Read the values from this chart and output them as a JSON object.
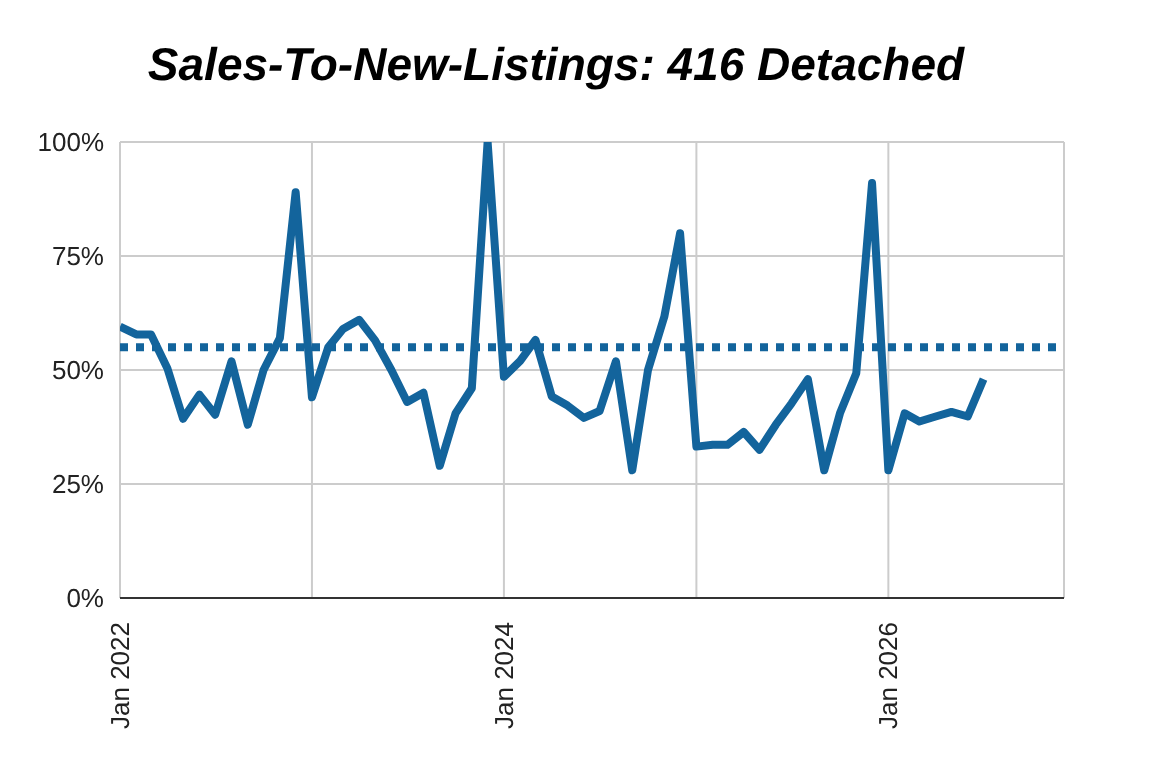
{
  "chart_data": {
    "type": "line",
    "title": "Sales-To-New-Listings: 416 Detached",
    "x": [
      "2022-01",
      "2022-02",
      "2022-03",
      "2022-04",
      "2022-05",
      "2022-06",
      "2022-07",
      "2022-08",
      "2022-09",
      "2022-10",
      "2022-11",
      "2022-12",
      "2023-01",
      "2023-02",
      "2023-03",
      "2023-04",
      "2023-05",
      "2023-06",
      "2023-07",
      "2023-08",
      "2023-09",
      "2023-10",
      "2023-11",
      "2023-12",
      "2024-01",
      "2024-02",
      "2024-03",
      "2024-04",
      "2024-05",
      "2024-06",
      "2024-07",
      "2024-08",
      "2024-09",
      "2024-10",
      "2024-11",
      "2024-12",
      "2025-01",
      "2025-02",
      "2025-03",
      "2025-04",
      "2025-05",
      "2025-06",
      "2025-07",
      "2025-08",
      "2025-09",
      "2025-10",
      "2025-11",
      "2025-12",
      "2026-01",
      "2026-02",
      "2026-03",
      "2026-04",
      "2026-05",
      "2026-06",
      "2026-07"
    ],
    "series": [
      {
        "color": "#13649c",
        "values": [
          59.5,
          57.8,
          57.8,
          50.4,
          39.3,
          44.6,
          40.2,
          51.9,
          38,
          50,
          57,
          89,
          44,
          55,
          59,
          61,
          56.5,
          50,
          43,
          45,
          29,
          40.5,
          46,
          100,
          48.5,
          52,
          56.6,
          44.2,
          42.2,
          39.5,
          41,
          51.9,
          28,
          50,
          61.7,
          80,
          33.2,
          33.6,
          33.6,
          36.4,
          32.5,
          38,
          42.7,
          48,
          28,
          40.5,
          49.3,
          91,
          28,
          40.5,
          38.7,
          39.8,
          40.8,
          39.8,
          48
        ]
      }
    ],
    "xlim": [
      "2022-01",
      "2026-12"
    ],
    "xticks": [
      {
        "value": "2022-01",
        "label": "Jan 2022"
      },
      {
        "value": "2023-01",
        "label": null
      },
      {
        "value": "2024-01",
        "label": "Jan 2024"
      },
      {
        "value": "2025-01",
        "label": null
      },
      {
        "value": "2026-01",
        "label": "Jan 2026"
      }
    ],
    "ylim": [
      0,
      100
    ],
    "yticks": [
      {
        "value": 0,
        "label": "0%"
      },
      {
        "value": 25,
        "label": "25%"
      },
      {
        "value": 50,
        "label": "50%"
      },
      {
        "value": 75,
        "label": "75%"
      },
      {
        "value": 100,
        "label": "100%"
      }
    ],
    "grid": true,
    "ref_lines": [
      {
        "axis": "y",
        "value": 55,
        "color": "#13649c",
        "line_style": "dotted"
      }
    ]
  }
}
